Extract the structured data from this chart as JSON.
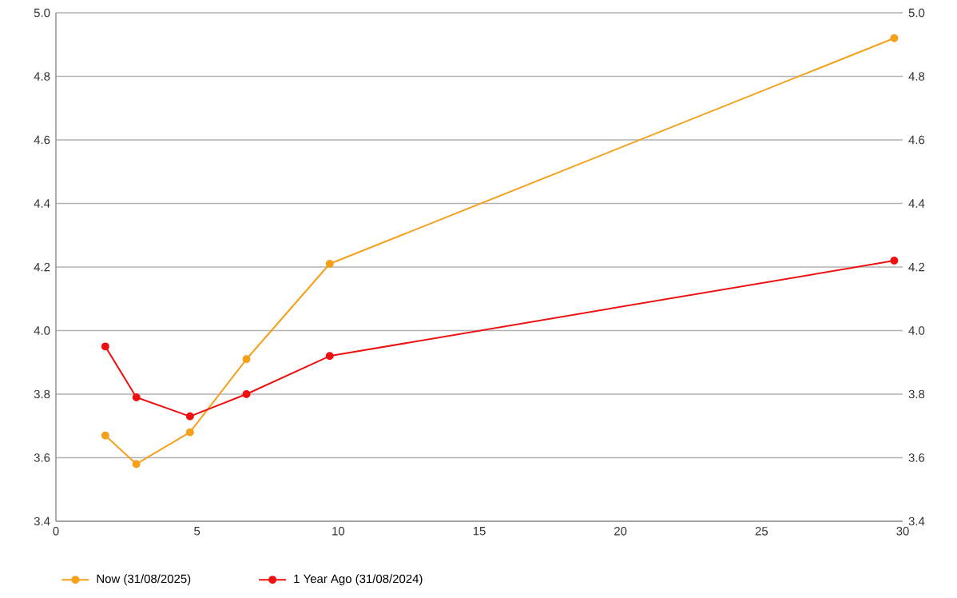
{
  "chart_data": {
    "type": "line",
    "series": [
      {
        "name": "Now (31/08/2025)",
        "color": "#f5a01a",
        "x": [
          1.75,
          2.85,
          4.75,
          6.75,
          9.7,
          29.7
        ],
        "values": [
          3.67,
          3.58,
          3.68,
          3.91,
          4.21,
          4.92
        ]
      },
      {
        "name": "1 Year Ago (31/08/2024)",
        "color": "#ee1111",
        "x": [
          1.75,
          2.85,
          4.75,
          6.75,
          9.7,
          29.7
        ],
        "values": [
          3.95,
          3.79,
          3.73,
          3.8,
          3.92,
          4.22
        ]
      }
    ],
    "xlim": [
      0,
      30
    ],
    "xticks": [
      0,
      5,
      10,
      15,
      20,
      25,
      30
    ],
    "ylim": [
      3.4,
      5.0
    ],
    "yticks": [
      3.4,
      3.6,
      3.8,
      {
        "value": 4,
        "label": "4.0"
      },
      4.2,
      4.4,
      4.6,
      4.8,
      {
        "value": 5,
        "label": "5.0"
      }
    ],
    "y2lim": [
      3.4,
      5.0
    ],
    "y2ticks": [
      3.4,
      3.6,
      3.8,
      {
        "value": 4,
        "label": "4.0"
      },
      4.2,
      4.4,
      4.6,
      4.8,
      {
        "value": 5,
        "label": "5.0"
      }
    ],
    "grid": "y",
    "legend": "bottom",
    "marker": "circle",
    "line_style": "solid"
  }
}
